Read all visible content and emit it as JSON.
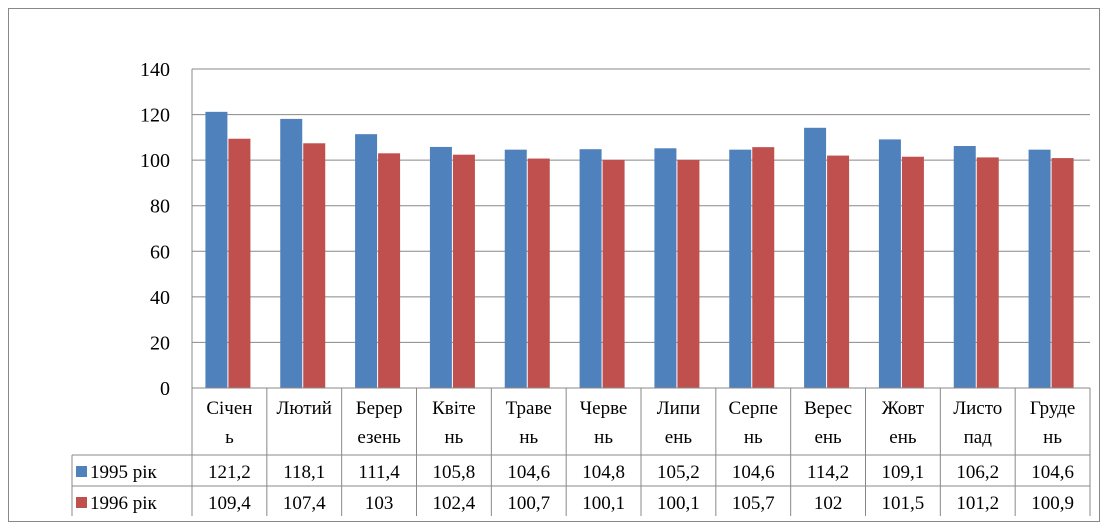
{
  "chart_data": {
    "type": "bar",
    "categories": [
      [
        "Січен",
        "ь"
      ],
      [
        "Лютий",
        ""
      ],
      [
        "Берер",
        "езень"
      ],
      [
        "Квіте",
        "нь"
      ],
      [
        "Травe",
        "нь"
      ],
      [
        "Черве",
        "нь"
      ],
      [
        "Липи",
        "ень"
      ],
      [
        "Серпе",
        "нь"
      ],
      [
        "Верес",
        "ень"
      ],
      [
        "Жовт",
        "ень"
      ],
      [
        "Листо",
        "пад"
      ],
      [
        "Груде",
        "нь"
      ]
    ],
    "series": [
      {
        "name": "1995 рік",
        "color": "#4f81bd",
        "values": [
          121.2,
          118.1,
          111.4,
          105.8,
          104.6,
          104.8,
          105.2,
          104.6,
          114.2,
          109.1,
          106.2,
          104.6
        ],
        "labels": [
          "121,2",
          "118,1",
          "111,4",
          "105,8",
          "104,6",
          "104,8",
          "105,2",
          "104,6",
          "114,2",
          "109,1",
          "106,2",
          "104,6"
        ]
      },
      {
        "name": "1996 рік",
        "color": "#c0504d",
        "values": [
          109.4,
          107.4,
          103,
          102.4,
          100.7,
          100.1,
          100.1,
          105.7,
          102,
          101.5,
          101.2,
          100.9
        ],
        "labels": [
          "109,4",
          "107,4",
          "103",
          "102,4",
          "100,7",
          "100,1",
          "100,1",
          "105,7",
          "102",
          "101,5",
          "101,2",
          "100,9"
        ]
      }
    ],
    "ylim": [
      0,
      140
    ],
    "yticks": [
      "0",
      "20",
      "40",
      "60",
      "80",
      "100",
      "120",
      "140"
    ],
    "grid": true,
    "legend": "data-table-left"
  }
}
